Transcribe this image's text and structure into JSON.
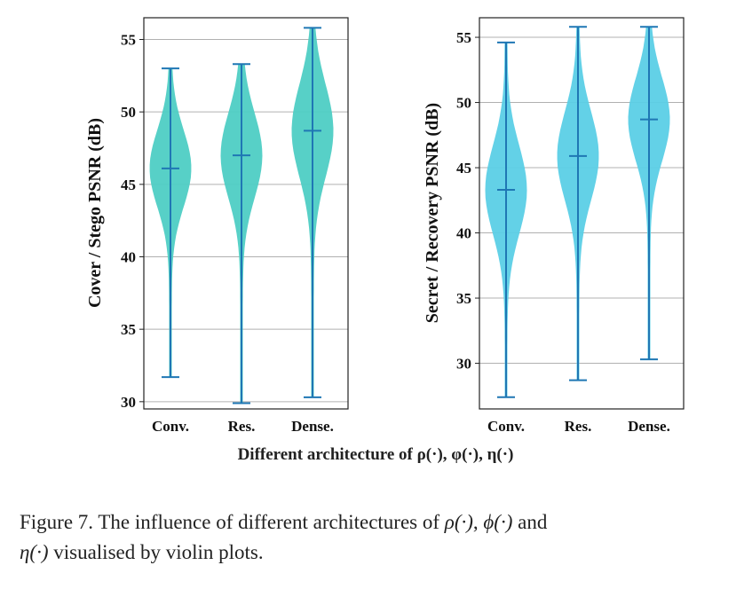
{
  "chart_data": [
    {
      "type": "violin",
      "ylabel": "Cover / Stego  PSNR (dB)",
      "categories": [
        "Conv.",
        "Res.",
        "Dense."
      ],
      "ylim": [
        29.5,
        56.5
      ],
      "yticks": [
        30,
        35,
        40,
        45,
        50,
        55
      ],
      "grid": true,
      "color": "#4ecdc4",
      "series": [
        {
          "name": "Conv.",
          "min": 31.7,
          "max": 53.0,
          "median": 46.1
        },
        {
          "name": "Res.",
          "min": 29.9,
          "max": 53.3,
          "median": 47.0
        },
        {
          "name": "Dense.",
          "min": 30.3,
          "max": 55.8,
          "median": 48.7
        }
      ]
    },
    {
      "type": "violin",
      "ylabel": "Secret / Recovery  PSNR (dB)",
      "categories": [
        "Conv.",
        "Res.",
        "Dense."
      ],
      "ylim": [
        26.5,
        56.5
      ],
      "yticks": [
        30,
        35,
        40,
        45,
        50,
        55
      ],
      "grid": true,
      "color": "#5bcfe6",
      "series": [
        {
          "name": "Conv.",
          "min": 27.4,
          "max": 54.6,
          "median": 43.3
        },
        {
          "name": "Res.",
          "min": 28.7,
          "max": 55.8,
          "median": 45.9
        },
        {
          "name": "Dense.",
          "min": 30.3,
          "max": 55.8,
          "median": 48.7
        }
      ]
    }
  ],
  "shared_xlabel": "Different architecture of ρ(·), φ(·), η(·)",
  "caption": {
    "text_before": "Figure 7. The influence of different architectures of ",
    "rho": "ρ(·)",
    "sep1": ", ",
    "phi": "ϕ(·)",
    "sep2": " and",
    "eta": "η(·)",
    "text_after": " visualised by violin plots."
  }
}
